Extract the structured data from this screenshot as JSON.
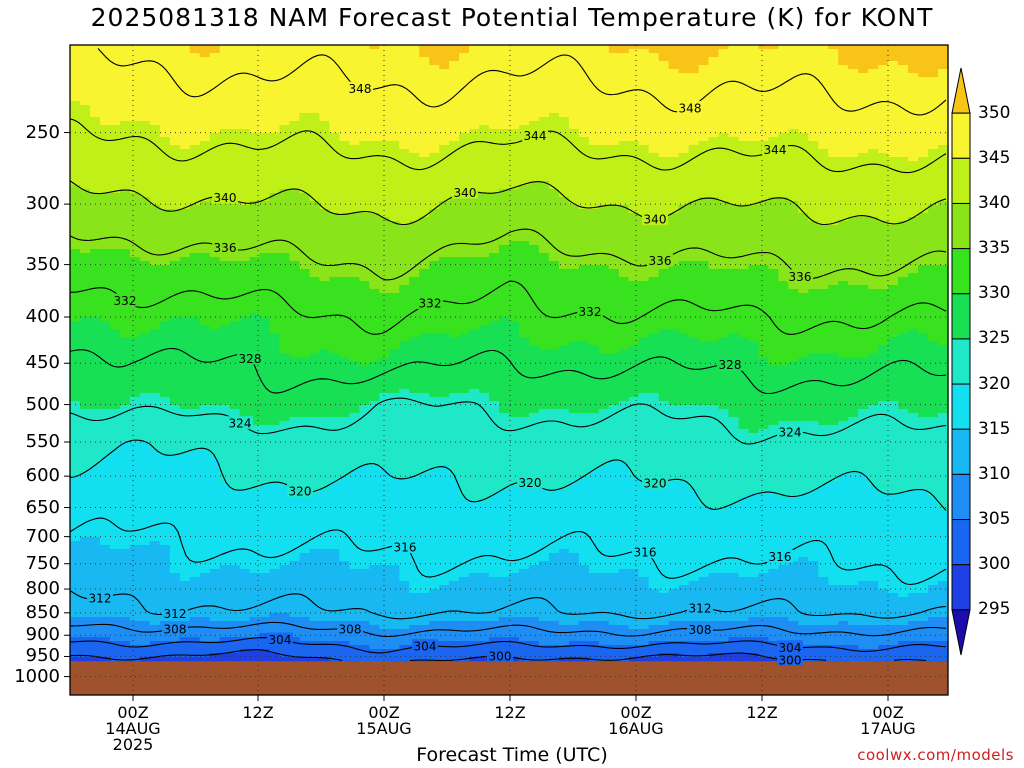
{
  "title": "2025081318 NAM Forecast Potential Temperature (K) for KONT",
  "xaxis_label": "Forecast Time (UTC)",
  "credit": "coolwx.com/models",
  "colors": {
    "ground": "#a0522d",
    "bands": [
      "#1a0dab",
      "#1f3fe6",
      "#1a66f0",
      "#1e8ef5",
      "#18b8f2",
      "#12e0f0",
      "#1fe8c8",
      "#1ee89c",
      "#18e055",
      "#39e21e",
      "#8ae41a",
      "#bff018",
      "#f8f530",
      "#f8c418"
    ]
  },
  "chart_data": {
    "type": "contour",
    "title": "2025081318 NAM Forecast Potential Temperature (K) for KONT",
    "xlabel": "Forecast Time (UTC)",
    "ylabel": "",
    "y_ticks": [
      "250",
      "300",
      "350",
      "400",
      "450",
      "500",
      "550",
      "600",
      "650",
      "700",
      "750",
      "800",
      "850",
      "900",
      "950",
      "1000"
    ],
    "x_ticks": [
      {
        "lines": [
          "00Z",
          "14AUG",
          "2025"
        ]
      },
      {
        "lines": [
          "12Z"
        ]
      },
      {
        "lines": [
          "00Z",
          "15AUG"
        ]
      },
      {
        "lines": [
          "12Z"
        ]
      },
      {
        "lines": [
          "00Z",
          "16AUG"
        ]
      },
      {
        "lines": [
          "12Z"
        ]
      },
      {
        "lines": [
          "00Z",
          "17AUG"
        ]
      }
    ],
    "colorbar_ticks": [
      "350",
      "345",
      "340",
      "335",
      "330",
      "325",
      "320",
      "315",
      "310",
      "305",
      "300",
      "295"
    ],
    "contour_labels": [
      "348",
      "348",
      "344",
      "344",
      "340",
      "340",
      "340",
      "336",
      "336",
      "336",
      "332",
      "332",
      "332",
      "328",
      "328",
      "324",
      "324",
      "320",
      "320",
      "320",
      "316",
      "316",
      "316",
      "312",
      "312",
      "312",
      "308",
      "308",
      "308",
      "304",
      "304",
      "304",
      "300",
      "300"
    ],
    "levels": [
      296,
      300,
      304,
      308,
      312,
      316,
      320,
      324,
      328,
      332,
      336,
      340,
      344,
      348
    ],
    "profiles_hPa": [
      250,
      300,
      350,
      400,
      450,
      500,
      550,
      600,
      650,
      700,
      750,
      800,
      850,
      900,
      950
    ],
    "profiles": [
      [
        344.5,
        339,
        333.5,
        330,
        327,
        324.5,
        320.5,
        319,
        317.5,
        316,
        314.5,
        313,
        311,
        306,
        300
      ],
      [
        345,
        340,
        335,
        331,
        329,
        327,
        322,
        320,
        318,
        316.5,
        315,
        313.5,
        311.5,
        306,
        299
      ],
      [
        345.5,
        340.5,
        336,
        332,
        329,
        324,
        322,
        320.5,
        318.5,
        317,
        315.5,
        314,
        312,
        307,
        302
      ],
      [
        345,
        339,
        334,
        331,
        328,
        325,
        322,
        320,
        318.5,
        317,
        315.5,
        314,
        312,
        307,
        301
      ],
      [
        345.5,
        340,
        335,
        331.5,
        328.5,
        325,
        322,
        320.5,
        318.5,
        317,
        315.5,
        314,
        312,
        307,
        300
      ],
      [
        346,
        340.5,
        336,
        332,
        329,
        326,
        323,
        321,
        319,
        317.5,
        316,
        314,
        312,
        307,
        300
      ],
      [
        346,
        340.5,
        336,
        332,
        329,
        326,
        323,
        321,
        319,
        317.5,
        316,
        314.5,
        312,
        307,
        302
      ]
    ]
  }
}
